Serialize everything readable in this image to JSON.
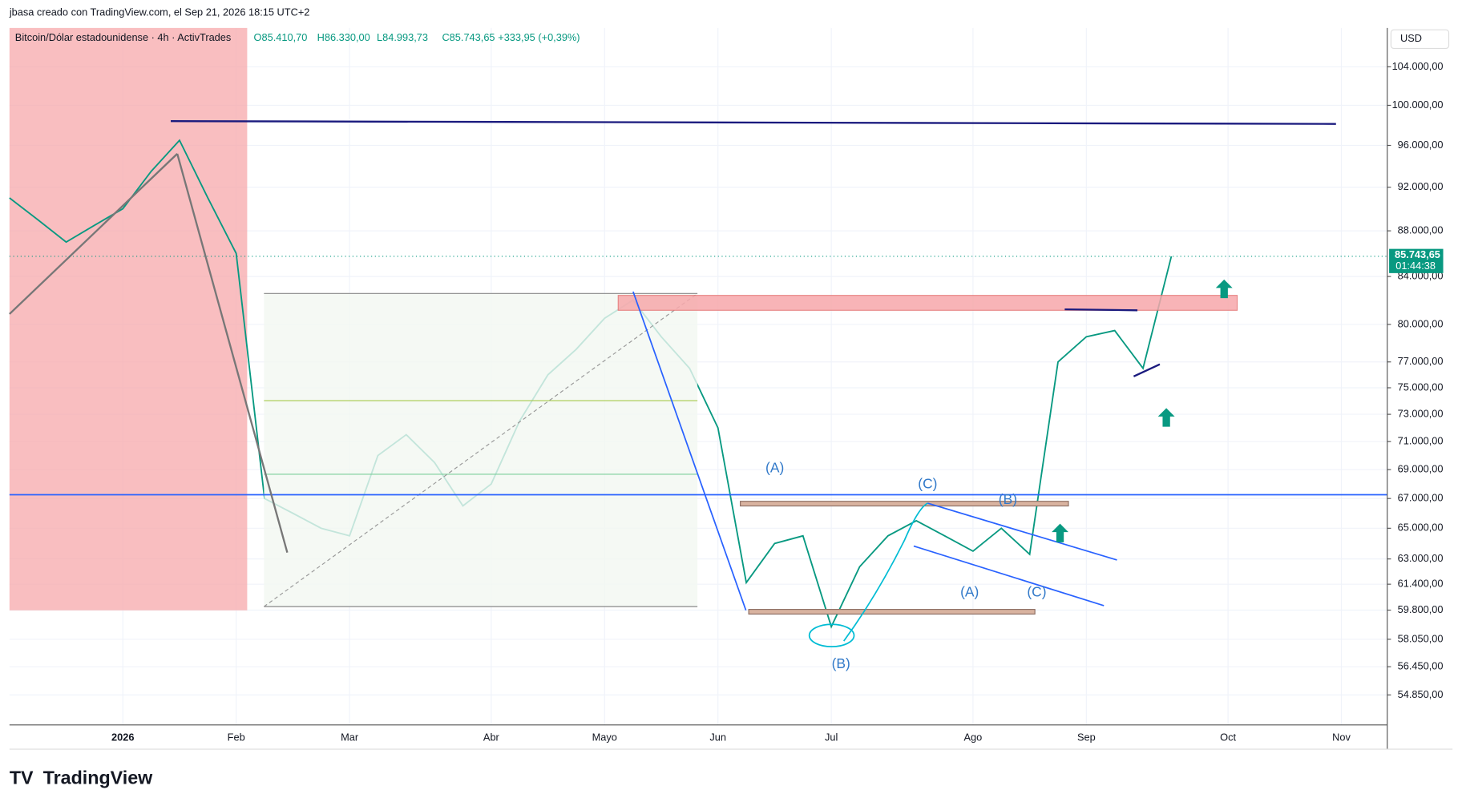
{
  "chart_data": {
    "type": "line",
    "credit": "jbasa creado con TradingView.com, el Sep 21, 2026 18:15 UTC+2",
    "title": "Bitcoin/Dólar estadounidense · 4h · ActivTrades",
    "ohlc": {
      "open": "O85.410,70",
      "high": "H86.330,00",
      "low": "L84.993,73",
      "close": "C85.743,65",
      "change": "+333,95 (+0,39%)"
    },
    "currency": "USD",
    "last_price_label": "85.743,65",
    "countdown": "01:44:38",
    "brand": "TradingView",
    "log_scale": true,
    "categories": [
      null,
      null,
      null,
      null,
      "2026",
      null,
      null,
      null,
      "Feb",
      null,
      null,
      null,
      "Mar",
      null,
      null,
      null,
      null,
      "Abr",
      null,
      null,
      null,
      "Mayo",
      null,
      null,
      null,
      "Jun",
      null,
      null,
      null,
      "Jul",
      null,
      null,
      null,
      null,
      "Ago",
      null,
      null,
      null,
      "Sep",
      null,
      null,
      null,
      null,
      "Oct",
      null,
      null,
      null,
      "Nov"
    ],
    "series": [
      {
        "name": "BTCUSD",
        "color": "#089981",
        "values": [
          91000,
          89000,
          87000,
          88500,
          90000,
          93500,
          96500,
          91000,
          86000,
          67000,
          66000,
          65000,
          64500,
          70000,
          71500,
          69500,
          66500,
          68000,
          72500,
          76000,
          78000,
          80500,
          82000,
          79000,
          76500,
          72000,
          61500,
          64000,
          64500,
          58800,
          62500,
          64500,
          65500,
          64500,
          63500,
          65000,
          63300,
          77000,
          79000,
          79500,
          76500,
          85743.65,
          null,
          null,
          null,
          null,
          null,
          null
        ]
      }
    ],
    "ylim": [
      53200,
      108200
    ],
    "yticks": [
      {
        "value": 54850,
        "label": "54.850,00"
      },
      {
        "value": 56450,
        "label": "56.450,00"
      },
      {
        "value": 58050,
        "label": "58.050,00"
      },
      {
        "value": 59800,
        "label": "59.800,00"
      },
      {
        "value": 61400,
        "label": "61.400,00"
      },
      {
        "value": 63000,
        "label": "63.000,00"
      },
      {
        "value": 65000,
        "label": "65.000,00"
      },
      {
        "value": 67000,
        "label": "67.000,00"
      },
      {
        "value": 69000,
        "label": "69.000,00"
      },
      {
        "value": 71000,
        "label": "71.000,00"
      },
      {
        "value": 73000,
        "label": "73.000,00"
      },
      {
        "value": 75000,
        "label": "75.000,00"
      },
      {
        "value": 77000,
        "label": "77.000,00"
      },
      {
        "value": 80000,
        "label": "80.000,00"
      },
      {
        "value": 84000,
        "label": "84.000,00"
      },
      {
        "value": 88000,
        "label": "88.000,00"
      },
      {
        "value": 92000,
        "label": "92.000,00"
      },
      {
        "value": 96000,
        "label": "96.000,00"
      },
      {
        "value": 100000,
        "label": "100.000,00"
      },
      {
        "value": 104000,
        "label": "104.000,00"
      }
    ],
    "grid": true,
    "annotations": [
      "(A)",
      "(C)",
      "(B)",
      "(B)",
      "(A)",
      "(C)"
    ]
  }
}
